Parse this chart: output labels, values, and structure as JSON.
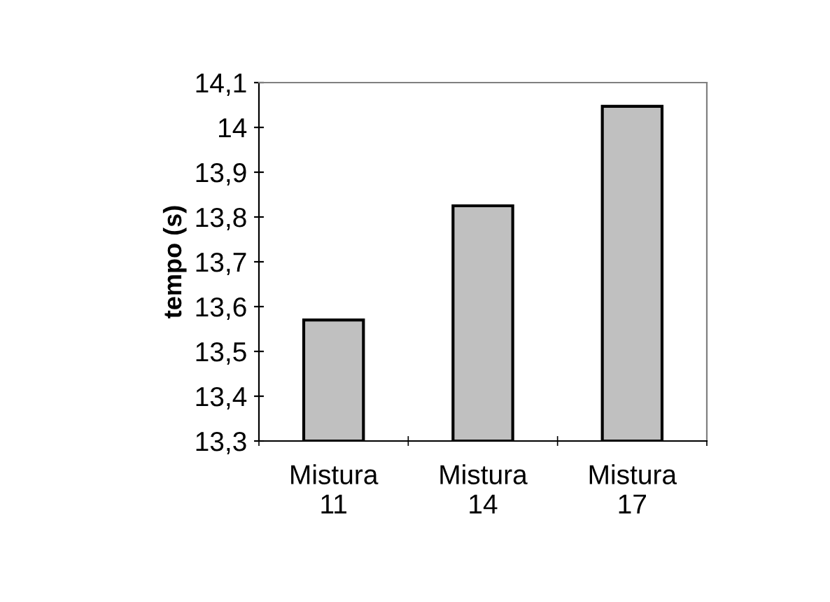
{
  "chart_data": {
    "type": "bar",
    "ylabel": "tempo (s)",
    "categories": [
      "Mistura\n11",
      "Mistura\n14",
      "Mistura\n17"
    ],
    "values": [
      13.57,
      13.825,
      14.047
    ],
    "color": "#c0c0c0",
    "ylim": [
      13.3,
      14.1
    ],
    "yticks": [
      {
        "value": 13.3,
        "label": "13,3"
      },
      {
        "value": 13.4,
        "label": "13,4"
      },
      {
        "value": 13.5,
        "label": "13,5"
      },
      {
        "value": 13.6,
        "label": "13,6"
      },
      {
        "value": 13.7,
        "label": "13,7"
      },
      {
        "value": 13.8,
        "label": "13,8"
      },
      {
        "value": 13.9,
        "label": "13,9"
      },
      {
        "value": 14,
        "label": "14"
      },
      {
        "value": 14.1,
        "label": "14,1"
      }
    ],
    "grid": false,
    "legend": false
  }
}
